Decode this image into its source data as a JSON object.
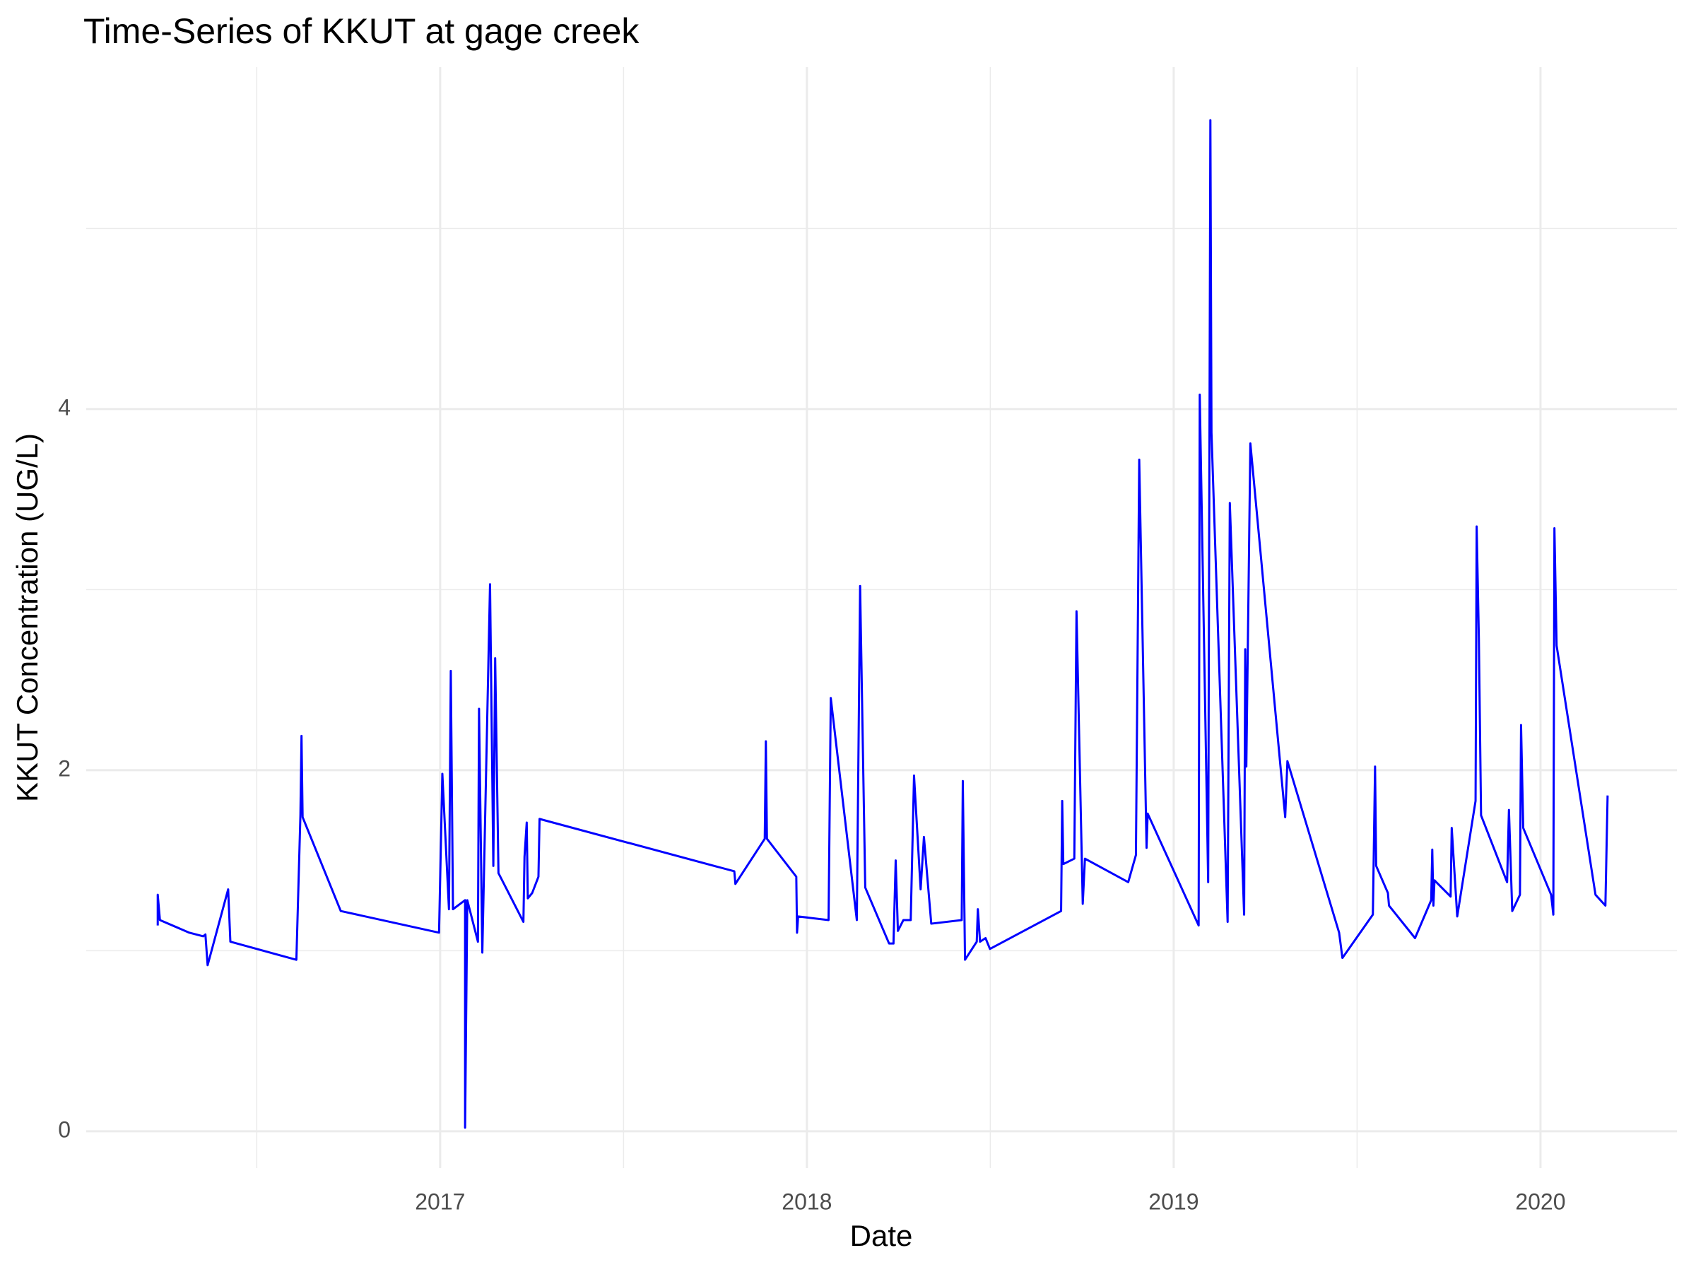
{
  "chart_data": {
    "type": "line",
    "title": "Time-Series of KKUT at gage creek",
    "xlabel": "Date",
    "ylabel": "KKUT Concentration (UG/L)",
    "xlim": [
      2016.035,
      2020.372
    ],
    "xticks": [
      2017,
      2018,
      2019,
      2020
    ],
    "xminor": [
      2016.5,
      2017.5,
      2018.5,
      2019.5
    ],
    "ylim": [
      -0.204,
      5.894
    ],
    "yticks": [
      0,
      2,
      4
    ],
    "yminor": [
      1,
      3,
      5
    ],
    "grid": true,
    "series": [
      {
        "color": "#0000ff",
        "x": [
          2016.23,
          2016.23,
          2016.236,
          2016.316,
          2016.354,
          2016.36,
          2016.366,
          2016.422,
          2016.428,
          2016.608,
          2016.619,
          2016.622,
          2016.625,
          2016.729,
          2016.997,
          2017.006,
          2017.024,
          2017.029,
          2017.035,
          2017.068,
          2017.068,
          2017.074,
          2017.103,
          2017.106,
          2017.115,
          2017.136,
          2017.145,
          2017.15,
          2017.159,
          2017.227,
          2017.23,
          2017.236,
          2017.239,
          2017.251,
          2017.268,
          2017.271,
          2017.802,
          2017.805,
          2017.885,
          2017.888,
          2017.891,
          2017.971,
          2017.973,
          2017.976,
          2018.059,
          2018.065,
          2018.136,
          2018.145,
          2018.159,
          2018.224,
          2018.236,
          2018.242,
          2018.248,
          2018.263,
          2018.283,
          2018.292,
          2018.31,
          2018.319,
          2018.339,
          2018.422,
          2018.425,
          2018.431,
          2018.463,
          2018.466,
          2018.472,
          2018.487,
          2018.499,
          2018.693,
          2018.696,
          2018.699,
          2018.729,
          2018.735,
          2018.752,
          2018.758,
          2018.876,
          2018.897,
          2018.906,
          2018.926,
          2018.929,
          2019.068,
          2019.071,
          2019.094,
          2019.1,
          2019.103,
          2019.147,
          2019.153,
          2019.192,
          2019.195,
          2019.198,
          2019.209,
          2019.304,
          2019.31,
          2019.451,
          2019.46,
          2019.543,
          2019.549,
          2019.552,
          2019.584,
          2019.587,
          2019.658,
          2019.702,
          2019.705,
          2019.708,
          2019.711,
          2019.755,
          2019.758,
          2019.773,
          2019.823,
          2019.826,
          2019.832,
          2019.838,
          2019.909,
          2019.914,
          2019.923,
          2019.944,
          2019.947,
          2019.953,
          2020.029,
          2020.035,
          2020.038,
          2020.044,
          2020.15,
          2020.177,
          2020.183
        ],
        "values": [
          1.14,
          1.31,
          1.17,
          1.1,
          1.08,
          1.09,
          0.92,
          1.34,
          1.05,
          0.95,
          1.75,
          2.19,
          1.74,
          1.22,
          1.1,
          1.98,
          1.23,
          2.55,
          1.23,
          1.28,
          0.02,
          1.28,
          1.05,
          2.34,
          0.99,
          3.03,
          1.47,
          2.62,
          1.43,
          1.16,
          1.52,
          1.71,
          1.29,
          1.32,
          1.41,
          1.73,
          1.44,
          1.37,
          1.62,
          2.16,
          1.62,
          1.41,
          1.1,
          1.19,
          1.17,
          2.4,
          1.17,
          3.02,
          1.35,
          1.04,
          1.04,
          1.5,
          1.11,
          1.17,
          1.17,
          1.97,
          1.34,
          1.63,
          1.15,
          1.17,
          1.94,
          0.95,
          1.05,
          1.23,
          1.05,
          1.07,
          1.01,
          1.22,
          1.83,
          1.48,
          1.51,
          2.88,
          1.26,
          1.51,
          1.38,
          1.53,
          3.72,
          1.57,
          1.76,
          1.14,
          4.08,
          1.38,
          5.6,
          3.87,
          1.16,
          3.48,
          1.2,
          2.67,
          2.02,
          3.81,
          1.74,
          2.05,
          1.1,
          0.96,
          1.2,
          2.02,
          1.47,
          1.32,
          1.25,
          1.07,
          1.28,
          1.56,
          1.25,
          1.39,
          1.3,
          1.68,
          1.19,
          1.83,
          3.35,
          2.73,
          1.75,
          1.38,
          1.78,
          1.22,
          1.31,
          2.25,
          1.68,
          1.31,
          1.2,
          3.34,
          2.69,
          1.31,
          1.25,
          1.86
        ]
      }
    ]
  }
}
